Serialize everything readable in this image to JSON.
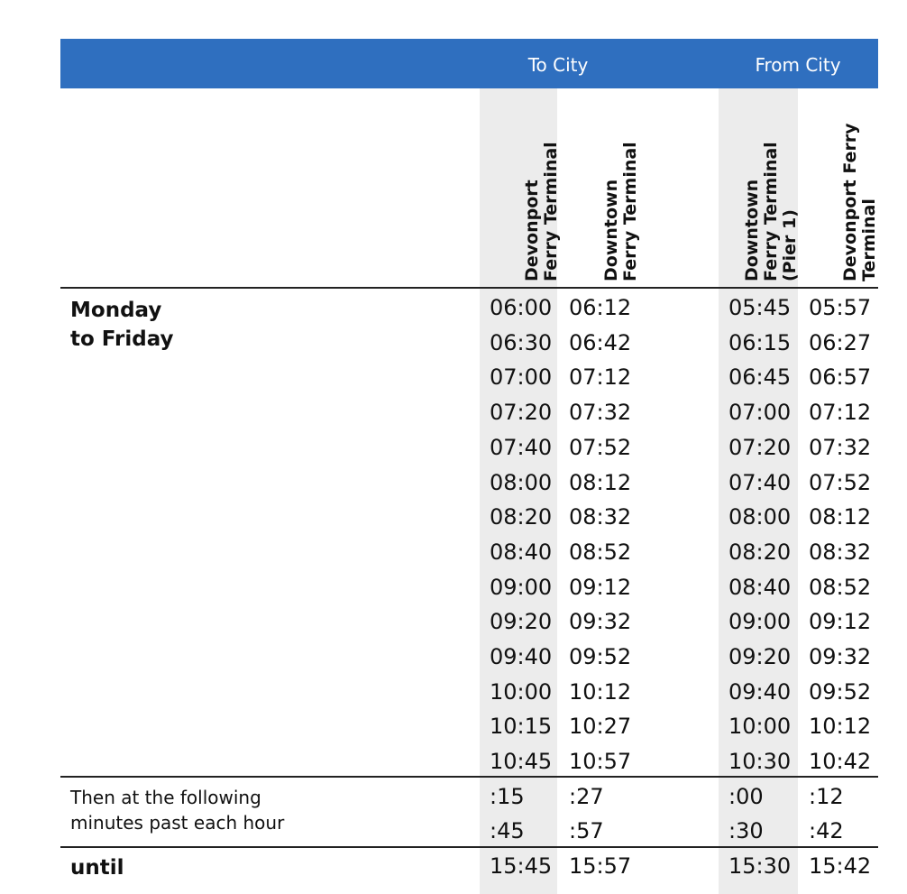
{
  "header": {
    "to_city": "To City",
    "from_city": "From City"
  },
  "columns": [
    "Devonport\nFerry Terminal",
    "Downtown\nFerry Terminal",
    "Downtown\nFerry Terminal\n(Pier 1)",
    "Devonport Ferry\nTerminal"
  ],
  "sections": {
    "weekday_label": "Monday\nto Friday",
    "then_label": "Then at the following\nminutes past each hour",
    "until_label": "until"
  },
  "weekday_times": [
    [
      "06:00",
      "06:12",
      "05:45",
      "05:57"
    ],
    [
      "06:30",
      "06:42",
      "06:15",
      "06:27"
    ],
    [
      "07:00",
      "07:12",
      "06:45",
      "06:57"
    ],
    [
      "07:20",
      "07:32",
      "07:00",
      "07:12"
    ],
    [
      "07:40",
      "07:52",
      "07:20",
      "07:32"
    ],
    [
      "08:00",
      "08:12",
      "07:40",
      "07:52"
    ],
    [
      "08:20",
      "08:32",
      "08:00",
      "08:12"
    ],
    [
      "08:40",
      "08:52",
      "08:20",
      "08:32"
    ],
    [
      "09:00",
      "09:12",
      "08:40",
      "08:52"
    ],
    [
      "09:20",
      "09:32",
      "09:00",
      "09:12"
    ],
    [
      "09:40",
      "09:52",
      "09:20",
      "09:32"
    ],
    [
      "10:00",
      "10:12",
      "09:40",
      "09:52"
    ],
    [
      "10:15",
      "10:27",
      "10:00",
      "10:12"
    ],
    [
      "10:45",
      "10:57",
      "10:30",
      "10:42"
    ]
  ],
  "then_times": [
    [
      ":15",
      ":27",
      ":00",
      ":12"
    ],
    [
      ":45",
      ":57",
      ":30",
      ":42"
    ]
  ],
  "until_times": [
    [
      "15:45",
      "15:57",
      "15:30",
      "15:42"
    ]
  ],
  "colors": {
    "header_blue": "#2f6fbf",
    "shade_grey": "#ececec"
  }
}
